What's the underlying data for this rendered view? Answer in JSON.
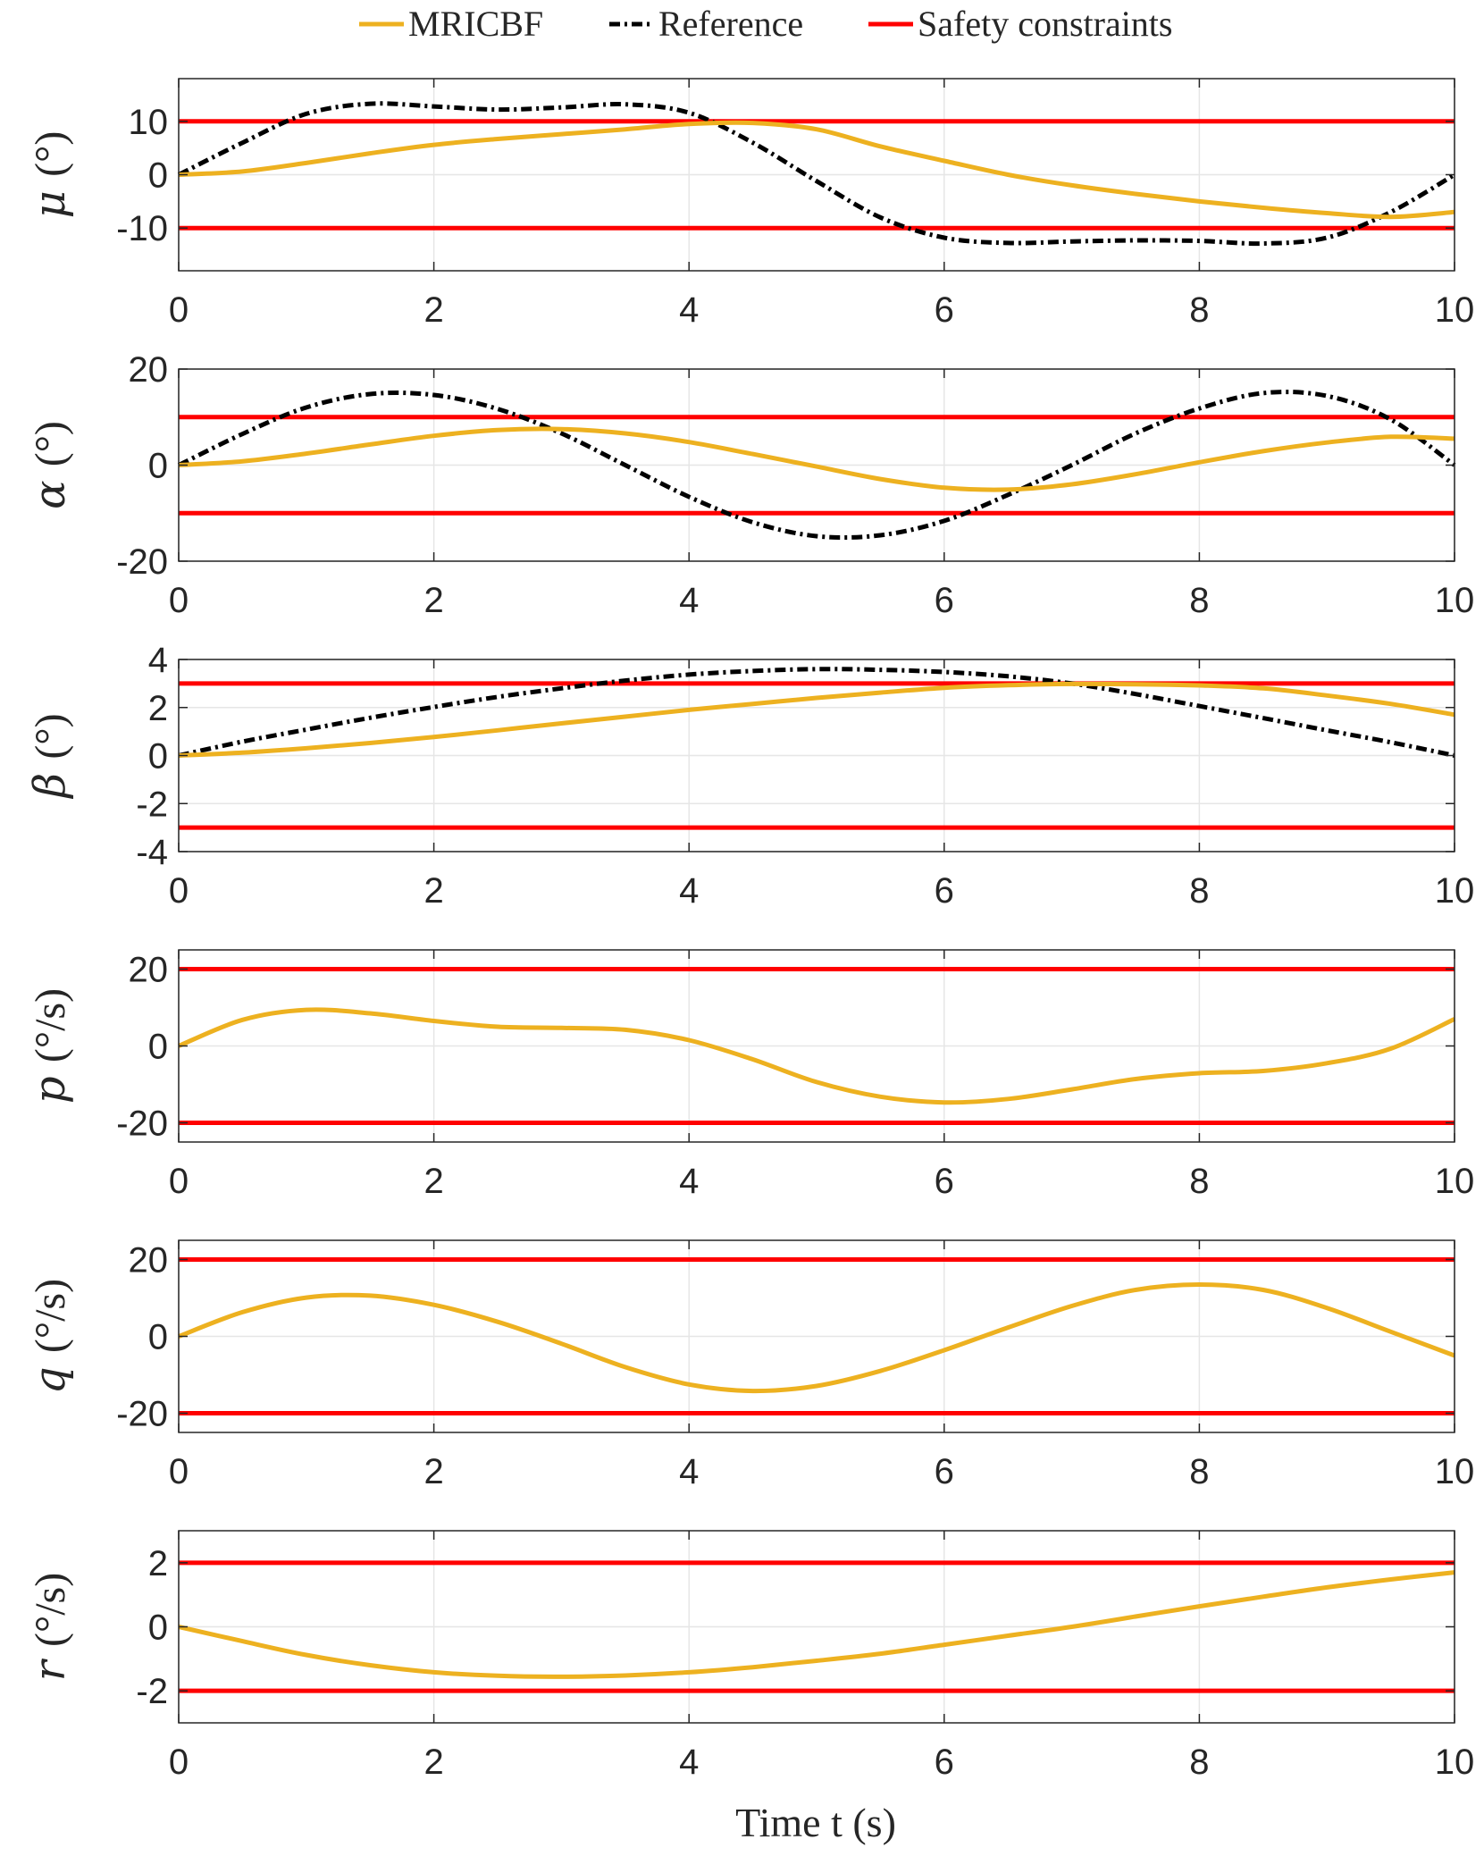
{
  "legend": {
    "items": [
      {
        "label": "MRICBF",
        "color": "#EDB120",
        "dash": "solid"
      },
      {
        "label": "Reference",
        "color": "#000000",
        "dash": "dashdot"
      },
      {
        "label": "Safety constraints",
        "color": "#FF0000",
        "dash": "solid"
      }
    ]
  },
  "xlabel": "Time t (s)",
  "chart_data": [
    {
      "type": "line",
      "ylabel": "μ (°)",
      "ylabel_symbol": "μ",
      "ylabel_unit": "(°)",
      "xlim": [
        0,
        10
      ],
      "ylim": [
        -18,
        18
      ],
      "xticks": [
        0,
        2,
        4,
        6,
        8,
        10
      ],
      "yticks": [
        -10,
        0,
        10
      ],
      "ytick_labels": [
        "-10",
        "0",
        "10"
      ],
      "grid": true,
      "constraints": [
        10,
        -10
      ],
      "series": [
        {
          "name": "MRICBF",
          "x": [
            0,
            0.5,
            1,
            1.5,
            2,
            2.5,
            3,
            3.5,
            4,
            4.5,
            5,
            5.5,
            6,
            6.5,
            7,
            7.5,
            8,
            8.5,
            9,
            9.5,
            10
          ],
          "y": [
            0,
            0.6,
            2.2,
            4,
            5.6,
            6.7,
            7.6,
            8.5,
            9.5,
            9.7,
            8.5,
            5.3,
            2.6,
            0,
            -2,
            -3.6,
            -5,
            -6.2,
            -7.2,
            -7.9,
            -7
          ]
        },
        {
          "name": "Reference",
          "x": [
            0,
            0.5,
            1,
            1.5,
            2,
            2.5,
            3,
            3.5,
            4,
            4.5,
            5,
            5.5,
            6,
            6.5,
            7,
            7.5,
            8,
            8.5,
            9,
            9.5,
            10
          ],
          "y": [
            0,
            6,
            11.4,
            13.3,
            12.8,
            12.2,
            12.6,
            13.2,
            11.6,
            6,
            -1.2,
            -8,
            -11.8,
            -12.8,
            -12.5,
            -12.3,
            -12.4,
            -12.9,
            -11.8,
            -7,
            0
          ]
        }
      ]
    },
    {
      "type": "line",
      "ylabel": "α (°)",
      "ylabel_symbol": "α",
      "ylabel_unit": "(°)",
      "xlim": [
        0,
        10
      ],
      "ylim": [
        -20,
        20
      ],
      "xticks": [
        0,
        2,
        4,
        6,
        8,
        10
      ],
      "yticks": [
        -20,
        0,
        20
      ],
      "ytick_labels": [
        "-20",
        "0",
        "20"
      ],
      "grid": true,
      "constraints": [
        10,
        -10
      ],
      "series": [
        {
          "name": "MRICBF",
          "x": [
            0,
            0.5,
            1,
            1.5,
            2,
            2.5,
            3,
            3.5,
            4,
            4.5,
            5,
            5.5,
            6,
            6.5,
            7,
            7.5,
            8,
            8.5,
            9,
            9.5,
            10
          ],
          "y": [
            0,
            0.8,
            2.4,
            4.3,
            6.1,
            7.3,
            7.5,
            6.6,
            4.8,
            2.3,
            -0.3,
            -2.9,
            -4.7,
            -5.1,
            -4,
            -1.9,
            0.6,
            2.9,
            4.7,
            5.9,
            5.5
          ]
        },
        {
          "name": "Reference",
          "x": [
            0,
            0.5,
            1,
            1.5,
            2,
            2.5,
            3,
            3.5,
            4,
            4.5,
            5,
            5.5,
            6,
            6.5,
            7,
            7.5,
            8,
            8.5,
            9,
            9.5,
            10
          ],
          "y": [
            0,
            6.5,
            12,
            14.8,
            14.6,
            11.7,
            6.6,
            0,
            -6.6,
            -11.9,
            -14.8,
            -14.6,
            -11.6,
            -6.2,
            0,
            6.6,
            11.8,
            15,
            14.4,
            9.5,
            0
          ]
        }
      ]
    },
    {
      "type": "line",
      "ylabel": "β (°)",
      "ylabel_symbol": "β",
      "ylabel_unit": "(°)",
      "xlim": [
        0,
        10
      ],
      "ylim": [
        -4,
        4
      ],
      "xticks": [
        0,
        2,
        4,
        6,
        8,
        10
      ],
      "yticks": [
        -4,
        -2,
        0,
        2,
        4
      ],
      "ytick_labels": [
        "-4",
        "-2",
        "0",
        "2",
        "4"
      ],
      "grid": true,
      "constraints": [
        3,
        -3
      ],
      "series": [
        {
          "name": "MRICBF",
          "x": [
            0,
            0.5,
            1,
            1.5,
            2,
            2.5,
            3,
            3.5,
            4,
            4.5,
            5,
            5.5,
            6,
            6.5,
            7,
            7.5,
            8,
            8.5,
            9,
            9.5,
            10
          ],
          "y": [
            0,
            0.12,
            0.3,
            0.52,
            0.77,
            1.05,
            1.34,
            1.62,
            1.9,
            2.15,
            2.4,
            2.62,
            2.82,
            2.93,
            2.98,
            2.97,
            2.92,
            2.8,
            2.5,
            2.15,
            1.7
          ]
        },
        {
          "name": "Reference",
          "x": [
            0,
            0.5,
            1,
            1.5,
            2,
            2.5,
            3,
            3.5,
            4,
            4.5,
            5,
            5.5,
            6,
            6.5,
            7,
            7.5,
            8,
            8.5,
            9,
            9.5,
            10
          ],
          "y": [
            0,
            0.58,
            1.08,
            1.57,
            2.02,
            2.44,
            2.8,
            3.12,
            3.37,
            3.52,
            3.6,
            3.57,
            3.48,
            3.3,
            3,
            2.56,
            2.06,
            1.56,
            1.05,
            0.55,
            0
          ]
        }
      ]
    },
    {
      "type": "line",
      "ylabel": "p (°/s)",
      "ylabel_symbol": "p",
      "ylabel_unit": "(°/s)",
      "xlim": [
        0,
        10
      ],
      "ylim": [
        -25,
        25
      ],
      "xticks": [
        0,
        2,
        4,
        6,
        8,
        10
      ],
      "yticks": [
        -20,
        0,
        20
      ],
      "ytick_labels": [
        "-20",
        "0",
        "20"
      ],
      "grid": true,
      "constraints": [
        20,
        -20
      ],
      "series": [
        {
          "name": "MRICBF",
          "x": [
            0,
            0.5,
            1,
            1.5,
            2,
            2.5,
            3,
            3.5,
            4,
            4.5,
            5,
            5.5,
            6,
            6.5,
            7,
            7.5,
            8,
            8.5,
            9,
            9.5,
            10
          ],
          "y": [
            0,
            6.8,
            9.4,
            8.5,
            6.5,
            5,
            4.7,
            4.2,
            1.5,
            -3.5,
            -9.4,
            -13.2,
            -14.7,
            -13.8,
            -11.3,
            -8.6,
            -7.1,
            -6.5,
            -4.5,
            -0.7,
            7
          ]
        }
      ]
    },
    {
      "type": "line",
      "ylabel": "q (°/s)",
      "ylabel_symbol": "q",
      "ylabel_unit": "(°/s)",
      "xlim": [
        0,
        10
      ],
      "ylim": [
        -25,
        25
      ],
      "xticks": [
        0,
        2,
        4,
        6,
        8,
        10
      ],
      "yticks": [
        -20,
        0,
        20
      ],
      "ytick_labels": [
        "-20",
        "0",
        "20"
      ],
      "grid": true,
      "constraints": [
        20,
        -20
      ],
      "series": [
        {
          "name": "MRICBF",
          "x": [
            0,
            0.5,
            1,
            1.5,
            2,
            2.5,
            3,
            3.5,
            4,
            4.5,
            5,
            5.5,
            6,
            6.5,
            7,
            7.5,
            8,
            8.5,
            9,
            9.5,
            10
          ],
          "y": [
            0,
            6.3,
            10.1,
            10.6,
            8.2,
            3.8,
            -1.9,
            -8,
            -12.5,
            -14.2,
            -12.9,
            -9,
            -3.6,
            2.3,
            7.9,
            12.1,
            13.5,
            12.1,
            7.4,
            1.2,
            -5
          ]
        }
      ]
    },
    {
      "type": "line",
      "ylabel": "r (°/s)",
      "ylabel_symbol": "r",
      "ylabel_unit": "(°/s)",
      "xlim": [
        0,
        10
      ],
      "ylim": [
        -3,
        3
      ],
      "xticks": [
        0,
        2,
        4,
        6,
        8,
        10
      ],
      "yticks": [
        -2,
        0,
        2
      ],
      "ytick_labels": [
        "-2",
        "0",
        "2"
      ],
      "grid": true,
      "constraints": [
        2,
        -2
      ],
      "series": [
        {
          "name": "MRICBF",
          "x": [
            0,
            0.5,
            1,
            1.5,
            2,
            2.5,
            3,
            3.5,
            4,
            4.5,
            5,
            5.5,
            6,
            6.5,
            7,
            7.5,
            8,
            8.5,
            9,
            9.5,
            10
          ],
          "y": [
            0,
            -0.45,
            -0.88,
            -1.2,
            -1.42,
            -1.53,
            -1.56,
            -1.52,
            -1.42,
            -1.26,
            -1.06,
            -0.84,
            -0.56,
            -0.28,
            0,
            0.32,
            0.64,
            0.94,
            1.23,
            1.48,
            1.7
          ]
        }
      ]
    }
  ]
}
